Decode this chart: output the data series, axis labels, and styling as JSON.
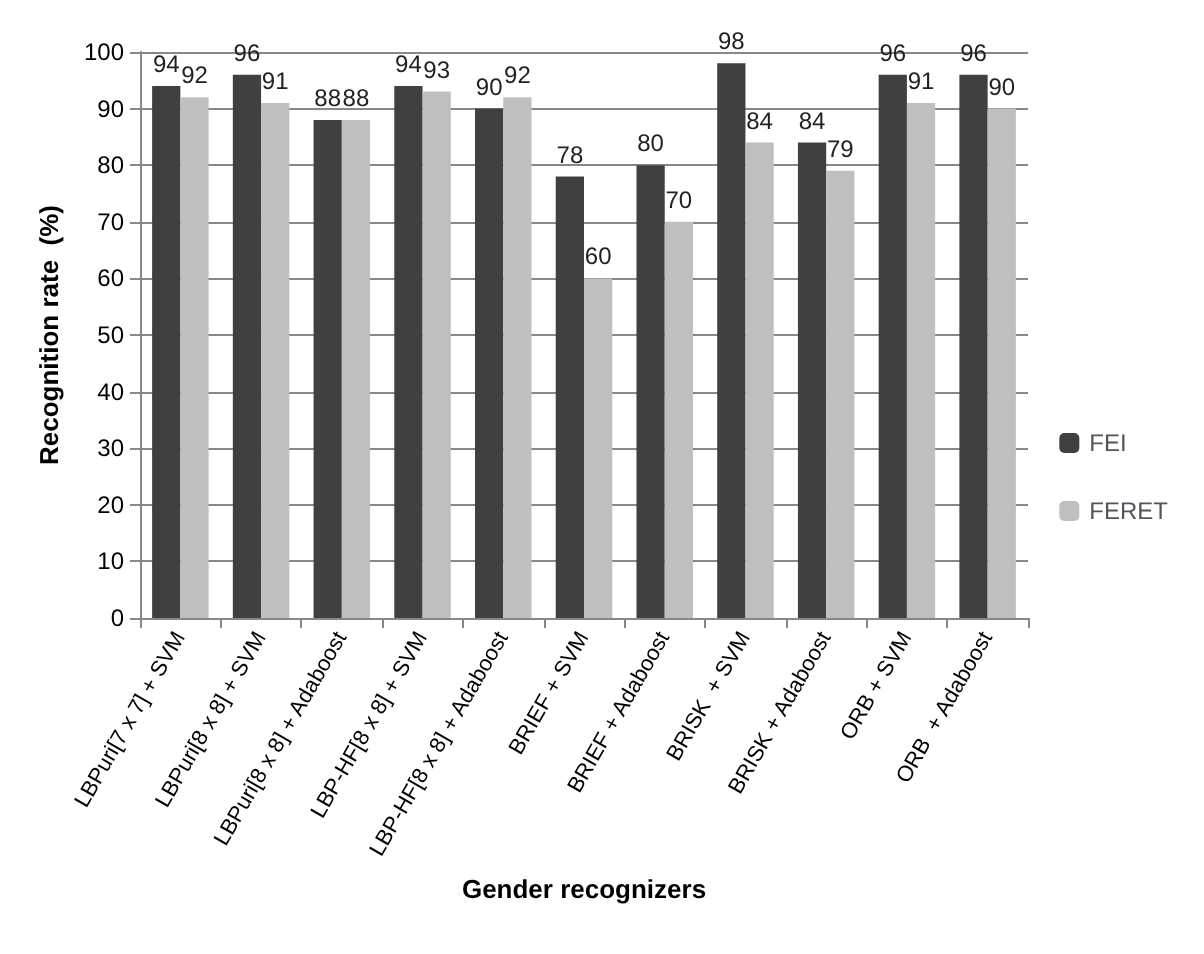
{
  "chart_data": {
    "type": "bar",
    "xlabel": "Gender recognizers",
    "ylabel": "Recognition rate  (%)",
    "categories": [
      "LBPuri[7 x 7] + SVM",
      "LBPuri[8 x 8] + SVM",
      "LBPuri[8 x 8] + Adaboost",
      "LBP-HF[8 x 8] + SVM",
      "LBP-HF[8 x 8] + Adaboost",
      "BRIEF + SVM",
      "BRIEF + Adaboost",
      "BRISK  + SVM",
      "BRISK + Adaboost",
      "ORB + SVM",
      "ORB  + Adaboost"
    ],
    "series": [
      {
        "name": "FEI",
        "color": "#404040",
        "values": [
          94,
          96,
          88,
          94,
          90,
          78,
          80,
          98,
          84,
          96,
          96
        ]
      },
      {
        "name": "FERET",
        "color": "#bfbfbf",
        "values": [
          92,
          91,
          88,
          93,
          92,
          60,
          70,
          84,
          79,
          91,
          90
        ]
      }
    ],
    "ylim": [
      0,
      100
    ],
    "yticks": [
      0,
      10,
      20,
      30,
      40,
      50,
      60,
      70,
      80,
      90,
      100
    ],
    "grid": "y",
    "legend": "right",
    "data_labels": true
  }
}
